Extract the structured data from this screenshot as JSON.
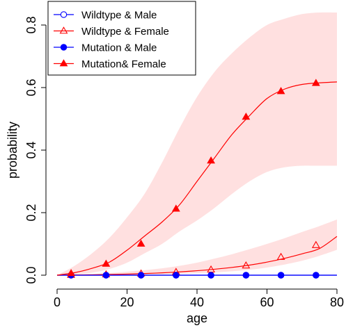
{
  "chart_data": {
    "type": "line",
    "xlabel": "age",
    "ylabel": "probability",
    "xlim": [
      0,
      80
    ],
    "ylim": [
      0,
      0.8
    ],
    "x_ticks": [
      0,
      20,
      40,
      60,
      80
    ],
    "x_tick_labels": [
      "0",
      "20",
      "40",
      "60",
      "80"
    ],
    "y_ticks": [
      0.0,
      0.2,
      0.4,
      0.6,
      0.8
    ],
    "y_tick_labels": [
      "0.0",
      "0.2",
      "0.4",
      "0.6",
      "0.8"
    ],
    "grid": false,
    "legend_position": "top-left",
    "series": [
      {
        "name": "Wildtype & Male",
        "color": "#0000ff",
        "marker": "open-circle",
        "x": [
          0,
          10,
          20,
          30,
          40,
          50,
          60,
          70,
          80
        ],
        "y": [
          0,
          0,
          0,
          0,
          0,
          0,
          0,
          0,
          0
        ],
        "marker_x": [
          4,
          14,
          24,
          34,
          44,
          54,
          64,
          74
        ],
        "marker_y": [
          0,
          0,
          0,
          0,
          0,
          0,
          0,
          0
        ]
      },
      {
        "name": "Wildtype & Female",
        "color": "#ff0000",
        "marker": "open-triangle",
        "x": [
          0,
          5,
          10,
          15,
          20,
          25,
          30,
          35,
          40,
          45,
          50,
          55,
          60,
          65,
          70,
          75,
          80
        ],
        "y": [
          0,
          0.0005,
          0.0012,
          0.0022,
          0.0035,
          0.0052,
          0.0075,
          0.0105,
          0.0143,
          0.019,
          0.0248,
          0.0322,
          0.0418,
          0.0538,
          0.0682,
          0.0852,
          0.124
        ],
        "marker_x": [
          4,
          14,
          24,
          34,
          44,
          54,
          64,
          74
        ],
        "marker_y": [
          0.0004,
          0.002,
          0.0048,
          0.0098,
          0.0175,
          0.0305,
          0.0578,
          0.0958
        ],
        "band_upper": [
          0,
          0.002,
          0.004,
          0.007,
          0.011,
          0.016,
          0.022,
          0.03,
          0.04,
          0.053,
          0.067,
          0.083,
          0.1,
          0.118,
          0.138,
          0.157,
          0.178
        ],
        "band_lower": [
          0,
          0,
          0.0003,
          0.0008,
          0.0014,
          0.0022,
          0.0032,
          0.0046,
          0.0065,
          0.009,
          0.0125,
          0.0175,
          0.0245,
          0.034,
          0.046,
          0.062,
          0.081
        ]
      },
      {
        "name": "Mutation & Male",
        "color": "#0000ff",
        "marker": "filled-circle",
        "x": [
          0,
          10,
          20,
          30,
          40,
          50,
          60,
          70,
          80
        ],
        "y": [
          0,
          0,
          0,
          0,
          0,
          0,
          0,
          0,
          0
        ],
        "marker_x": [
          4,
          14,
          24,
          34,
          44,
          54,
          64,
          74
        ],
        "marker_y": [
          0,
          0,
          0,
          0,
          0,
          0,
          0,
          0
        ]
      },
      {
        "name": "Mutation& Female",
        "color": "#ff0000",
        "marker": "filled-triangle",
        "x": [
          0,
          5,
          10,
          15,
          20,
          25,
          30,
          35,
          40,
          45,
          50,
          55,
          60,
          65,
          70,
          75,
          80
        ],
        "y": [
          0,
          0.008,
          0.022,
          0.042,
          0.08,
          0.125,
          0.17,
          0.225,
          0.3,
          0.375,
          0.45,
          0.51,
          0.565,
          0.595,
          0.61,
          0.615,
          0.618
        ],
        "marker_x": [
          4,
          14,
          24,
          34,
          44,
          54,
          64,
          74
        ],
        "marker_y": [
          0.006,
          0.036,
          0.1,
          0.212,
          0.366,
          0.506,
          0.588,
          0.614
        ],
        "band_upper": [
          0,
          0.03,
          0.07,
          0.12,
          0.185,
          0.26,
          0.36,
          0.47,
          0.57,
          0.65,
          0.71,
          0.76,
          0.8,
          0.82,
          0.835,
          0.84,
          0.84
        ],
        "band_lower": [
          0,
          0.002,
          0.008,
          0.02,
          0.04,
          0.07,
          0.1,
          0.14,
          0.175,
          0.215,
          0.26,
          0.3,
          0.33,
          0.345,
          0.35,
          0.35,
          0.35
        ]
      }
    ]
  }
}
